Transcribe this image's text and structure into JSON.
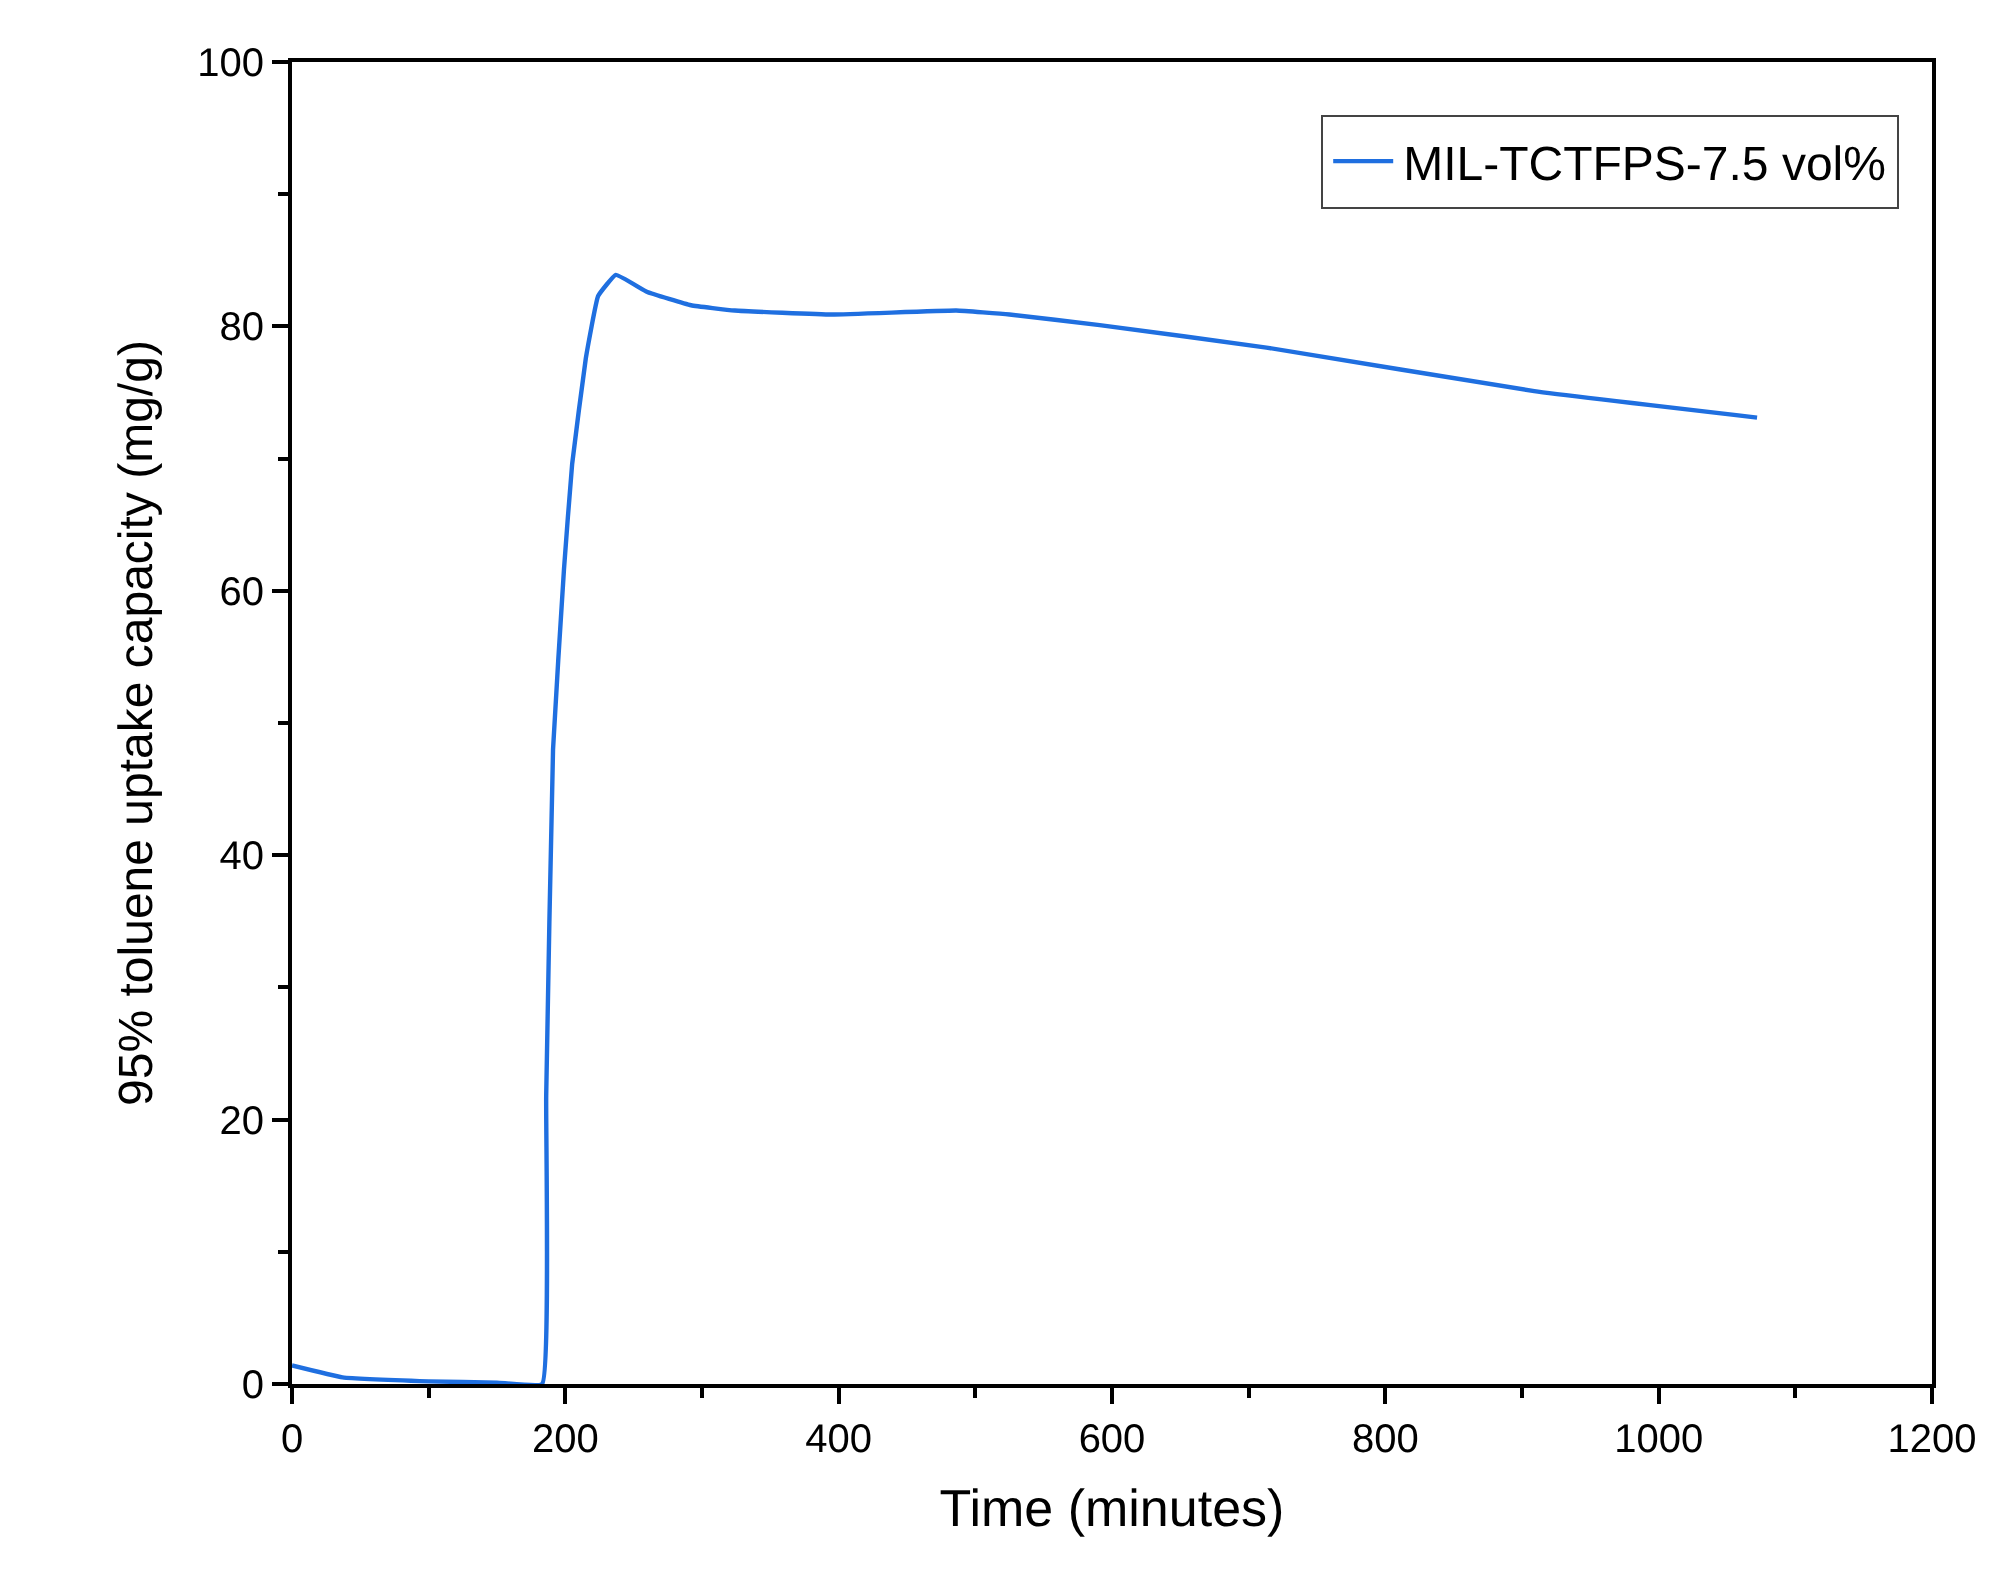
{
  "chart_data": {
    "type": "line",
    "xlabel": "Time (minutes)",
    "ylabel": "95% toluene uptake capacity (mg/g)",
    "xlim": [
      0,
      1200
    ],
    "xticks": [
      0,
      200,
      400,
      600,
      800,
      1000,
      1200
    ],
    "ylim": [
      0,
      100
    ],
    "yticks": [
      0,
      20,
      40,
      60,
      80,
      100
    ],
    "legend": "top right",
    "marker": "none",
    "line_style": "solid",
    "series": [
      {
        "name": "MIL-TCTFPS-7.5 vol%",
        "color": "#1f6fe0",
        "x": [
          0,
          37,
          100,
          150,
          183,
          186,
          191,
          199,
          205,
          215,
          224,
          237,
          260,
          292,
          324,
          395,
          486,
          525,
          591,
          713,
          909,
          1072
        ],
        "values": [
          1.4,
          0.5,
          0.2,
          0.1,
          0,
          21.8,
          48,
          61.6,
          69.6,
          77.6,
          82.3,
          83.9,
          82.6,
          81.6,
          81.2,
          80.9,
          81.2,
          80.9,
          80.1,
          78.4,
          75.1,
          73.1
        ]
      }
    ]
  }
}
